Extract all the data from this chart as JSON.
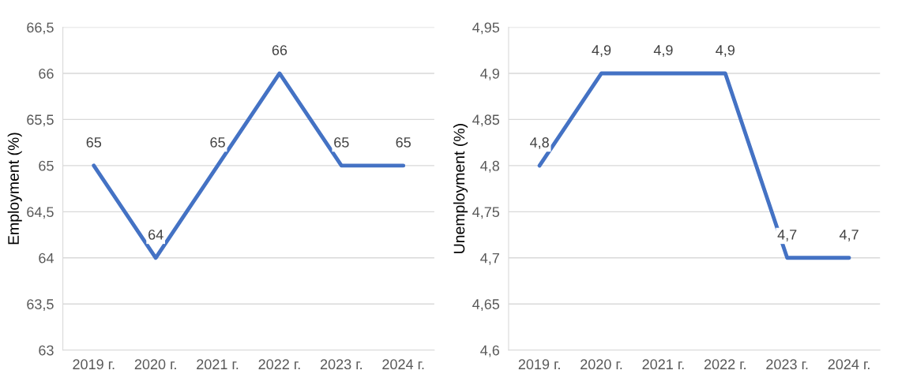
{
  "chart_data": [
    {
      "type": "line",
      "ylabel": "Employment (%)",
      "categories": [
        "2019 г.",
        "2020 г.",
        "2021 г.",
        "2022 г.",
        "2023 г.",
        "2024 г."
      ],
      "series": [
        {
          "color": "#4472c4",
          "values": [
            65,
            64,
            65,
            66,
            65,
            65
          ],
          "value_labels": [
            "65",
            "64",
            "65",
            "66",
            "65",
            "65"
          ]
        }
      ],
      "ylim": [
        63,
        66.5
      ],
      "yticks": [
        63,
        {
          "value": 63.5,
          "label": "63,5"
        },
        64,
        {
          "value": 64.5,
          "label": "64,5"
        },
        65,
        {
          "value": 65.5,
          "label": "65,5"
        },
        66,
        {
          "value": 66.5,
          "label": "66,5"
        }
      ],
      "grid": "y",
      "marker": "none",
      "line_style": "solid"
    },
    {
      "type": "line",
      "ylabel": "Unemployment (%)",
      "categories": [
        "2019 г.",
        "2020 г.",
        "2021 г.",
        "2022 г.",
        "2023 г.",
        "2024 г."
      ],
      "series": [
        {
          "color": "#4472c4",
          "values": [
            4.8,
            4.9,
            4.9,
            4.9,
            4.7,
            4.7
          ],
          "value_labels": [
            "4,8",
            "4,9",
            "4,9",
            "4,9",
            "4,7",
            "4,7"
          ]
        }
      ],
      "ylim": [
        4.6,
        4.95
      ],
      "yticks": [
        {
          "value": 4.6,
          "label": "4,6"
        },
        {
          "value": 4.65,
          "label": "4,65"
        },
        {
          "value": 4.7,
          "label": "4,7"
        },
        {
          "value": 4.75,
          "label": "4,75"
        },
        {
          "value": 4.8,
          "label": "4,8"
        },
        {
          "value": 4.85,
          "label": "4,85"
        },
        {
          "value": 4.9,
          "label": "4,9"
        },
        {
          "value": 4.95,
          "label": "4,95"
        }
      ],
      "grid": "y",
      "marker": "none",
      "line_style": "solid"
    }
  ]
}
